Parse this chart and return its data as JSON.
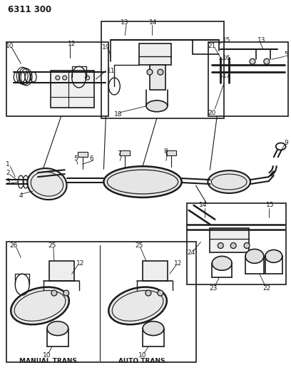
{
  "title": "6311 300",
  "bg_color": "#ffffff",
  "lc": "#1a1a1a",
  "fig_width": 4.08,
  "fig_height": 5.33,
  "dpi": 100,
  "manual_trans_label": "MANUAL TRANS.",
  "auto_trans_label": "AUTO TRANS."
}
